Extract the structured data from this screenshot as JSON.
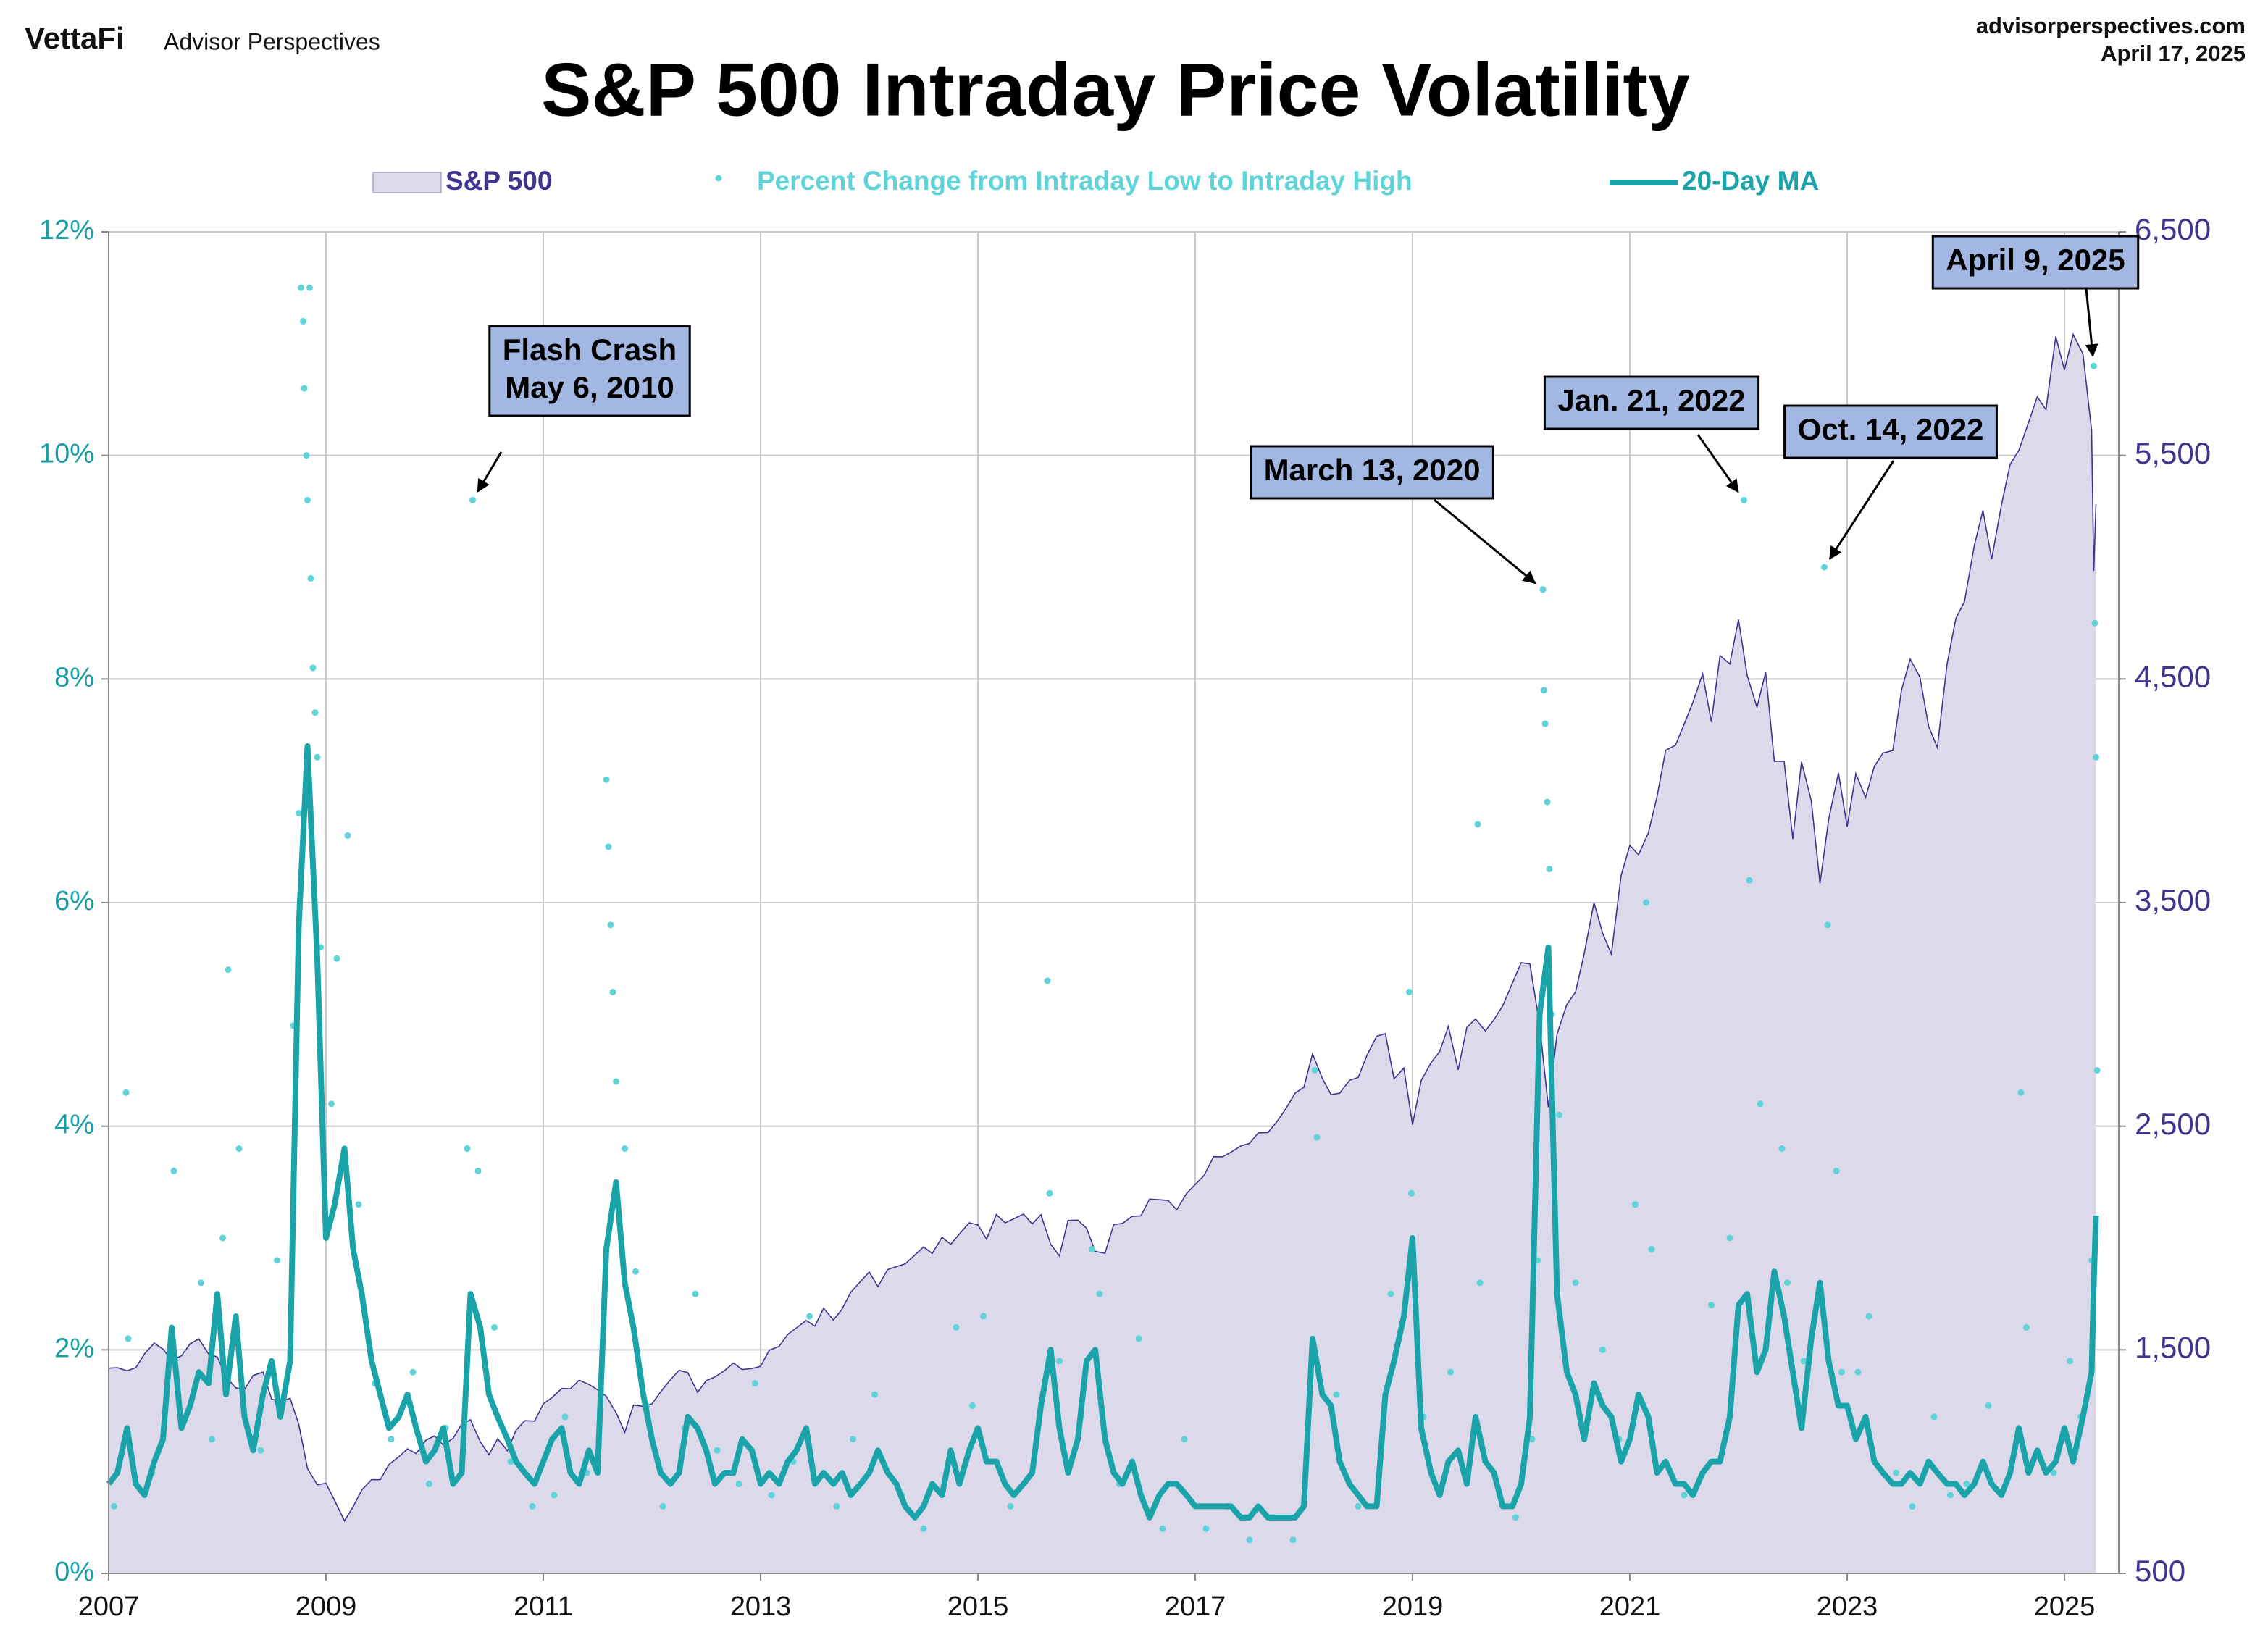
{
  "chart_data": {
    "type": "combo",
    "logo": "VettaFi",
    "brand": "Advisor Perspectives",
    "source": "advisorperspectives.com",
    "date": "April 17, 2025",
    "title": "S&P 500 Intraday Price Volatility",
    "xlim": [
      2007,
      2025.5
    ],
    "xticks": [
      2007,
      2009,
      2011,
      2013,
      2015,
      2017,
      2019,
      2021,
      2023,
      2025
    ],
    "ylim": [
      0,
      12
    ],
    "yticks": [
      {
        "value": 0,
        "label": "0%"
      },
      {
        "value": 2,
        "label": "2%"
      },
      {
        "value": 4,
        "label": "4%"
      },
      {
        "value": 6,
        "label": "6%"
      },
      {
        "value": 8,
        "label": "8%"
      },
      {
        "value": 10,
        "label": "10%"
      },
      {
        "value": 12,
        "label": "12%"
      }
    ],
    "y2lim": [
      500,
      6500
    ],
    "y2ticks": [
      500,
      {
        "value": 1500,
        "label": "1,500"
      },
      {
        "value": 2500,
        "label": "2,500"
      },
      {
        "value": 3500,
        "label": "3,500"
      },
      {
        "value": 4500,
        "label": "4,500"
      },
      {
        "value": 5500,
        "label": "5,500"
      },
      {
        "value": 6500,
        "label": "6,500"
      }
    ],
    "grid": true,
    "x": [
      2007,
      2007.08,
      2007.17,
      2007.25,
      2007.33,
      2007.42,
      2007.5,
      2007.58,
      2007.67,
      2007.75,
      2007.83,
      2007.92,
      2008,
      2008.08,
      2008.17,
      2008.25,
      2008.33,
      2008.42,
      2008.5,
      2008.58,
      2008.67,
      2008.75,
      2008.83,
      2008.92,
      2009,
      2009.08,
      2009.17,
      2009.25,
      2009.33,
      2009.42,
      2009.5,
      2009.58,
      2009.67,
      2009.75,
      2009.83,
      2009.92,
      2010,
      2010.08,
      2010.17,
      2010.25,
      2010.33,
      2010.42,
      2010.5,
      2010.58,
      2010.67,
      2010.75,
      2010.83,
      2010.92,
      2011,
      2011.08,
      2011.17,
      2011.25,
      2011.33,
      2011.42,
      2011.5,
      2011.58,
      2011.67,
      2011.75,
      2011.83,
      2011.92,
      2012,
      2012.08,
      2012.17,
      2012.25,
      2012.33,
      2012.42,
      2012.5,
      2012.58,
      2012.67,
      2012.75,
      2012.83,
      2012.92,
      2013,
      2013.08,
      2013.17,
      2013.25,
      2013.33,
      2013.42,
      2013.5,
      2013.58,
      2013.67,
      2013.75,
      2013.83,
      2013.92,
      2014,
      2014.08,
      2014.17,
      2014.25,
      2014.33,
      2014.42,
      2014.5,
      2014.58,
      2014.67,
      2014.75,
      2014.83,
      2014.92,
      2015,
      2015.08,
      2015.17,
      2015.25,
      2015.33,
      2015.42,
      2015.5,
      2015.58,
      2015.67,
      2015.75,
      2015.83,
      2015.92,
      2016,
      2016.08,
      2016.17,
      2016.25,
      2016.33,
      2016.42,
      2016.5,
      2016.58,
      2016.67,
      2016.75,
      2016.83,
      2016.92,
      2017,
      2017.08,
      2017.17,
      2017.25,
      2017.33,
      2017.42,
      2017.5,
      2017.58,
      2017.67,
      2017.75,
      2017.83,
      2017.92,
      2018,
      2018.08,
      2018.17,
      2018.25,
      2018.33,
      2018.42,
      2018.5,
      2018.58,
      2018.67,
      2018.75,
      2018.83,
      2018.92,
      2019,
      2019.08,
      2019.17,
      2019.25,
      2019.33,
      2019.42,
      2019.5,
      2019.58,
      2019.67,
      2019.75,
      2019.83,
      2019.92,
      2020,
      2020.08,
      2020.17,
      2020.25,
      2020.33,
      2020.42,
      2020.5,
      2020.58,
      2020.67,
      2020.75,
      2020.83,
      2020.92,
      2021,
      2021.08,
      2021.17,
      2021.25,
      2021.33,
      2021.42,
      2021.5,
      2021.58,
      2021.67,
      2021.75,
      2021.83,
      2021.92,
      2022,
      2022.08,
      2022.17,
      2022.25,
      2022.33,
      2022.42,
      2022.5,
      2022.58,
      2022.67,
      2022.75,
      2022.83,
      2022.92,
      2023,
      2023.08,
      2023.17,
      2023.25,
      2023.33,
      2023.42,
      2023.5,
      2023.58,
      2023.67,
      2023.75,
      2023.83,
      2023.92,
      2024,
      2024.08,
      2024.17,
      2024.25,
      2024.33,
      2024.42,
      2024.5,
      2024.58,
      2024.67,
      2024.75,
      2024.83,
      2024.92,
      2025,
      2025.08,
      2025.17,
      2025.25,
      2025.27,
      2025.29
    ],
    "series": [
      {
        "name": "S&P 500",
        "type": "area",
        "axis": "y2",
        "color": "#3e3590",
        "fill": "#dcd9ea",
        "values": [
          1418,
          1420,
          1406,
          1420,
          1482,
          1530,
          1503,
          1455,
          1473,
          1527,
          1549,
          1481,
          1468,
          1378,
          1330,
          1322,
          1385,
          1400,
          1280,
          1267,
          1283,
          1166,
          969,
          896,
          903,
          826,
          735,
          798,
          873,
          919,
          919,
          987,
          1021,
          1057,
          1036,
          1096,
          1115,
          1074,
          1104,
          1169,
          1187,
          1089,
          1031,
          1102,
          1049,
          1141,
          1183,
          1181,
          1258,
          1286,
          1327,
          1326,
          1364,
          1345,
          1321,
          1292,
          1219,
          1131,
          1253,
          1247,
          1258,
          1312,
          1366,
          1408,
          1398,
          1310,
          1362,
          1379,
          1407,
          1441,
          1412,
          1416,
          1426,
          1498,
          1515,
          1569,
          1598,
          1631,
          1606,
          1686,
          1633,
          1682,
          1757,
          1806,
          1848,
          1783,
          1859,
          1872,
          1884,
          1924,
          1960,
          1931,
          2003,
          1972,
          2018,
          2068,
          2059,
          1995,
          2105,
          2068,
          2086,
          2107,
          2063,
          2104,
          1972,
          1920,
          2079,
          2080,
          2044,
          1940,
          1932,
          2060,
          2065,
          2097,
          2099,
          2174,
          2171,
          2168,
          2126,
          2199,
          2239,
          2279,
          2364,
          2363,
          2384,
          2412,
          2423,
          2470,
          2472,
          2519,
          2575,
          2648,
          2674,
          2824,
          2714,
          2641,
          2648,
          2705,
          2718,
          2816,
          2902,
          2914,
          2712,
          2760,
          2507,
          2704,
          2784,
          2834,
          2946,
          2752,
          2942,
          2980,
          2926,
          2977,
          3038,
          3141,
          3231,
          3226,
          2954,
          2585,
          2912,
          3044,
          3100,
          3271,
          3500,
          3363,
          3270,
          3622,
          3756,
          3714,
          3811,
          3973,
          4181,
          4204,
          4298,
          4395,
          4523,
          4308,
          4605,
          4567,
          4766,
          4516,
          4374,
          4530,
          4132,
          4132,
          3785,
          4130,
          3955,
          3586,
          3872,
          4080,
          3840,
          4077,
          3970,
          4109,
          4169,
          4180,
          4450,
          4589,
          4508,
          4288,
          4194,
          4568,
          4770,
          4846,
          5096,
          5254,
          5036,
          5278,
          5460,
          5522,
          5648,
          5762,
          5705,
          6032,
          5882,
          6041,
          5955,
          5612,
          4983,
          5282
        ]
      },
      {
        "name": "Percent Change from Intraday Low to Intraday High",
        "type": "scatter",
        "color": "#5fd3d8",
        "x": [
          2007.05,
          2007.16,
          2007.18,
          2007.4,
          2007.6,
          2007.62,
          2007.85,
          2007.95,
          2008.05,
          2008.1,
          2008.2,
          2008.4,
          2008.55,
          2008.7,
          2008.75,
          2008.77,
          2008.79,
          2008.8,
          2008.82,
          2008.83,
          2008.85,
          2008.86,
          2008.88,
          2008.9,
          2008.92,
          2008.95,
          2009.05,
          2009.1,
          2009.2,
          2009.3,
          2009.45,
          2009.6,
          2009.8,
          2009.95,
          2010.1,
          2010.3,
          2010.35,
          2010.4,
          2010.55,
          2010.7,
          2010.9,
          2011.1,
          2011.2,
          2011.4,
          2011.58,
          2011.6,
          2011.62,
          2011.64,
          2011.67,
          2011.75,
          2011.85,
          2011.95,
          2012.1,
          2012.3,
          2012.4,
          2012.6,
          2012.8,
          2012.95,
          2013.1,
          2013.3,
          2013.45,
          2013.7,
          2013.85,
          2014.05,
          2014.3,
          2014.5,
          2014.8,
          2014.95,
          2015.05,
          2015.3,
          2015.64,
          2015.66,
          2015.75,
          2015.95,
          2016.05,
          2016.12,
          2016.3,
          2016.48,
          2016.7,
          2016.9,
          2017.1,
          2017.3,
          2017.5,
          2017.7,
          2017.9,
          2018.1,
          2018.12,
          2018.3,
          2018.5,
          2018.8,
          2018.97,
          2018.99,
          2019.1,
          2019.35,
          2019.6,
          2019.62,
          2019.8,
          2019.95,
          2020.1,
          2020.15,
          2020.2,
          2020.21,
          2020.22,
          2020.24,
          2020.26,
          2020.28,
          2020.35,
          2020.5,
          2020.75,
          2020.9,
          2021.05,
          2021.15,
          2021.2,
          2021.5,
          2021.75,
          2021.92,
          2022.05,
          2022.1,
          2022.2,
          2022.4,
          2022.45,
          2022.6,
          2022.79,
          2022.82,
          2022.9,
          2022.95,
          2023.1,
          2023.2,
          2023.45,
          2023.6,
          2023.8,
          2023.95,
          2024.1,
          2024.3,
          2024.6,
          2024.65,
          2024.9,
          2025.05,
          2025.15,
          2025.25,
          2025.27,
          2025.28,
          2025.29,
          2025.3
        ],
        "values": [
          0.6,
          4.3,
          2.1,
          0.9,
          3.6,
          1.8,
          2.6,
          1.2,
          3.0,
          5.4,
          3.8,
          1.1,
          2.8,
          4.9,
          6.8,
          11.5,
          11.2,
          10.6,
          10.0,
          9.6,
          11.5,
          8.9,
          8.1,
          7.7,
          7.3,
          5.6,
          4.2,
          5.5,
          6.6,
          3.3,
          1.7,
          1.2,
          1.8,
          0.8,
          1.3,
          3.8,
          9.6,
          3.6,
          2.2,
          1.0,
          0.6,
          0.7,
          1.4,
          0.9,
          7.1,
          6.5,
          5.8,
          5.2,
          4.4,
          3.8,
          2.7,
          1.5,
          0.6,
          1.3,
          2.5,
          1.1,
          0.8,
          1.7,
          0.7,
          1.0,
          2.3,
          0.6,
          1.2,
          1.6,
          0.7,
          0.4,
          2.2,
          1.5,
          2.3,
          0.6,
          5.3,
          3.4,
          1.9,
          1.4,
          2.9,
          2.5,
          0.8,
          2.1,
          0.4,
          1.2,
          0.4,
          0.6,
          0.3,
          0.5,
          0.3,
          4.5,
          3.9,
          1.6,
          0.6,
          2.5,
          5.2,
          3.4,
          1.4,
          1.8,
          6.7,
          2.6,
          0.7,
          0.5,
          1.2,
          2.8,
          8.8,
          7.9,
          7.6,
          6.9,
          6.3,
          5.0,
          4.1,
          2.6,
          2.0,
          1.2,
          3.3,
          6.0,
          2.9,
          0.7,
          2.4,
          3.0,
          9.6,
          6.2,
          4.2,
          3.8,
          2.6,
          1.9,
          9.0,
          5.8,
          3.6,
          1.8,
          1.8,
          2.3,
          0.9,
          0.6,
          1.4,
          0.7,
          0.8,
          1.5,
          4.3,
          2.2,
          0.9,
          1.9,
          1.4,
          2.8,
          10.8,
          8.5,
          7.3,
          4.5
        ]
      },
      {
        "name": "20-Day MA",
        "type": "line",
        "color": "#1aa3a8",
        "values": [
          0.8,
          0.9,
          1.3,
          0.8,
          0.7,
          1.0,
          1.2,
          2.2,
          1.3,
          1.5,
          1.8,
          1.7,
          2.5,
          1.6,
          2.3,
          1.4,
          1.1,
          1.6,
          1.9,
          1.4,
          1.9,
          5.8,
          7.4,
          5.5,
          3.0,
          3.3,
          3.8,
          2.9,
          2.5,
          1.9,
          1.6,
          1.3,
          1.4,
          1.6,
          1.3,
          1.0,
          1.1,
          1.3,
          0.8,
          0.9,
          2.5,
          2.2,
          1.6,
          1.4,
          1.2,
          1.0,
          0.9,
          0.8,
          1.0,
          1.2,
          1.3,
          0.9,
          0.8,
          1.1,
          0.9,
          2.9,
          3.5,
          2.6,
          2.2,
          1.6,
          1.2,
          0.9,
          0.8,
          0.9,
          1.4,
          1.3,
          1.1,
          0.8,
          0.9,
          0.9,
          1.2,
          1.1,
          0.8,
          0.9,
          0.8,
          1.0,
          1.1,
          1.3,
          0.8,
          0.9,
          0.8,
          0.9,
          0.7,
          0.8,
          0.9,
          1.1,
          0.9,
          0.8,
          0.6,
          0.5,
          0.6,
          0.8,
          0.7,
          1.1,
          0.8,
          1.1,
          1.3,
          1.0,
          1.0,
          0.8,
          0.7,
          0.8,
          0.9,
          1.5,
          2.0,
          1.3,
          0.9,
          1.2,
          1.9,
          2.0,
          1.2,
          0.9,
          0.8,
          1.0,
          0.7,
          0.5,
          0.7,
          0.8,
          0.8,
          0.7,
          0.6,
          0.6,
          0.6,
          0.6,
          0.6,
          0.5,
          0.5,
          0.6,
          0.5,
          0.5,
          0.5,
          0.5,
          0.6,
          2.1,
          1.6,
          1.5,
          1.0,
          0.8,
          0.7,
          0.6,
          0.6,
          1.6,
          1.9,
          2.3,
          3.0,
          1.3,
          0.9,
          0.7,
          1.0,
          1.1,
          0.8,
          1.4,
          1.0,
          0.9,
          0.6,
          0.6,
          0.8,
          1.4,
          5.0,
          5.6,
          2.5,
          1.8,
          1.6,
          1.2,
          1.7,
          1.5,
          1.4,
          1.0,
          1.2,
          1.6,
          1.4,
          0.9,
          1.0,
          0.8,
          0.8,
          0.7,
          0.9,
          1.0,
          1.0,
          1.4,
          2.4,
          2.5,
          1.8,
          2.0,
          2.7,
          2.3,
          1.8,
          1.3,
          2.1,
          2.6,
          1.9,
          1.5,
          1.5,
          1.2,
          1.4,
          1.0,
          0.9,
          0.8,
          0.8,
          0.9,
          0.8,
          1.0,
          0.9,
          0.8,
          0.8,
          0.7,
          0.8,
          1.0,
          0.8,
          0.7,
          0.9,
          1.3,
          0.9,
          1.1,
          0.9,
          1.0,
          1.3,
          1.0,
          1.4,
          1.8,
          2.6,
          3.2
        ]
      }
    ],
    "annotations": [
      {
        "text": [
          "Flash Crash",
          "May 6, 2010"
        ],
        "x": 2010.35,
        "y": 9.6
      },
      {
        "text": [
          "March 13, 2020"
        ],
        "x": 2020.2,
        "y": 8.8
      },
      {
        "text": [
          "Jan. 21, 2022"
        ],
        "x": 2022.05,
        "y": 9.6
      },
      {
        "text": [
          "Oct. 14, 2022"
        ],
        "x": 2022.79,
        "y": 9.0
      },
      {
        "text": [
          "April 9, 2025"
        ],
        "x": 2025.27,
        "y": 10.8
      }
    ]
  }
}
